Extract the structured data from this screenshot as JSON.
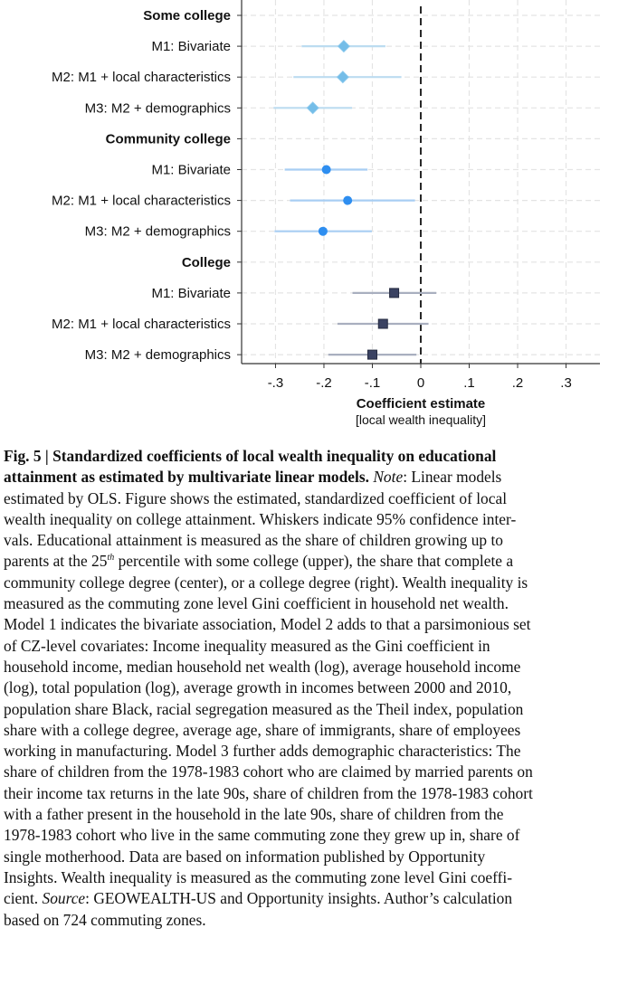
{
  "chart_data": {
    "type": "coefficient-plot",
    "xlabel": "Coefficient estimate",
    "xlabel_sub": "[local wealth inequality]",
    "xlim": [
      -0.37,
      0.37
    ],
    "xticks": [
      -0.3,
      -0.2,
      -0.1,
      0,
      0.1,
      0.2,
      0.3
    ],
    "xtick_labels": [
      "-.3",
      "-.2",
      "-.1",
      "0",
      ".1",
      ".2",
      ".3"
    ],
    "reference_line": 0,
    "grid": true,
    "groups": [
      {
        "name": "Some college",
        "marker": "diamond",
        "color": "#74bde8",
        "ci_color": "#bcdcf0",
        "rows": [
          {
            "label": "M1: Bivariate",
            "estimate": -0.159,
            "ci": [
              -0.246,
              -0.073
            ]
          },
          {
            "label": "M2: M1 + local characteristics",
            "estimate": -0.161,
            "ci": [
              -0.263,
              -0.04
            ]
          },
          {
            "label": "M3: M2 + demographics",
            "estimate": -0.223,
            "ci": [
              -0.304,
              -0.142
            ]
          }
        ]
      },
      {
        "name": "Community college",
        "marker": "circle",
        "color": "#2e8ef0",
        "ci_color": "#a8cef3",
        "rows": [
          {
            "label": "M1: Bivariate",
            "estimate": -0.195,
            "ci": [
              -0.281,
              -0.11
            ]
          },
          {
            "label": "M2: M1 + local characteristics",
            "estimate": -0.151,
            "ci": [
              -0.27,
              -0.012
            ]
          },
          {
            "label": "M3: M2 + demographics",
            "estimate": -0.202,
            "ci": [
              -0.302,
              -0.101
            ]
          }
        ]
      },
      {
        "name": "College",
        "marker": "square",
        "color": "#3a4262",
        "ci_color": "#a9afbf",
        "rows": [
          {
            "label": "M1: Bivariate",
            "estimate": -0.055,
            "ci": [
              -0.141,
              0.032
            ]
          },
          {
            "label": "M2: M1 + local characteristics",
            "estimate": -0.078,
            "ci": [
              -0.172,
              0.016
            ]
          },
          {
            "label": "M3: M2 + demographics",
            "estimate": -0.1,
            "ci": [
              -0.191,
              -0.009
            ]
          }
        ]
      }
    ]
  },
  "caption": {
    "lines": [
      [
        {
          "t": "Fig. 5 | Standardized coefficients of local wealth inequality on educational",
          "s": "b"
        }
      ],
      [
        {
          "t": "attainment as estimated by multivariate linear models.",
          "s": "b"
        },
        {
          "t": " "
        },
        {
          "t": "Note",
          "s": "i"
        },
        {
          "t": ": Linear models"
        }
      ],
      [
        {
          "t": "estimated by OLS. Figure shows the estimated, standardized coefficient of local"
        }
      ],
      [
        {
          "t": "wealth inequality on college attainment. Whiskers indicate 95% confidence inter-"
        }
      ],
      [
        {
          "t": "vals. Educational attainment is measured as the share of children growing up to"
        }
      ],
      [
        {
          "t": "parents at the 25"
        },
        {
          "t": "th",
          "s": "sup"
        },
        {
          "t": " percentile with some college (upper), the share that complete a"
        }
      ],
      [
        {
          "t": "community college degree (center), or a college degree (right). Wealth inequality is"
        }
      ],
      [
        {
          "t": "measured as the commuting zone level Gini coefficient in household net wealth."
        }
      ],
      [
        {
          "t": "Model 1 indicates the bivariate association, Model 2 adds to that a parsimonious set"
        }
      ],
      [
        {
          "t": "of CZ-level covariates: Income inequality measured as the Gini coefficient in"
        }
      ],
      [
        {
          "t": "household income, median household net wealth (log), average household income"
        }
      ],
      [
        {
          "t": "(log), total population (log), average growth in incomes between 2000 and 2010,"
        }
      ],
      [
        {
          "t": "population share Black, racial segregation measured as the Theil index, population"
        }
      ],
      [
        {
          "t": "share with a college degree, average age, share of immigrants, share of employees"
        }
      ],
      [
        {
          "t": "working in manufacturing. Model 3 further adds demographic characteristics: The"
        }
      ],
      [
        {
          "t": "share of children from the 1978-1983 cohort who are claimed by married parents on"
        }
      ],
      [
        {
          "t": "their income tax returns in the late 90s, share of children from the 1978-1983 cohort"
        }
      ],
      [
        {
          "t": "with a father present in the household in the late 90s, share of children from the"
        }
      ],
      [
        {
          "t": "1978-1983 cohort who live in the same commuting zone they grew up in, share of"
        }
      ],
      [
        {
          "t": "single motherhood. Data are based on information published by Opportunity"
        }
      ],
      [
        {
          "t": "Insights. Wealth inequality is measured as the commuting zone level Gini coeffi-"
        }
      ],
      [
        {
          "t": "cient. "
        },
        {
          "t": "Source",
          "s": "i"
        },
        {
          "t": ": GEOWEALTH-US and Opportunity insights. Author’s calculation"
        }
      ],
      [
        {
          "t": "based on 724 commuting zones."
        }
      ]
    ]
  }
}
